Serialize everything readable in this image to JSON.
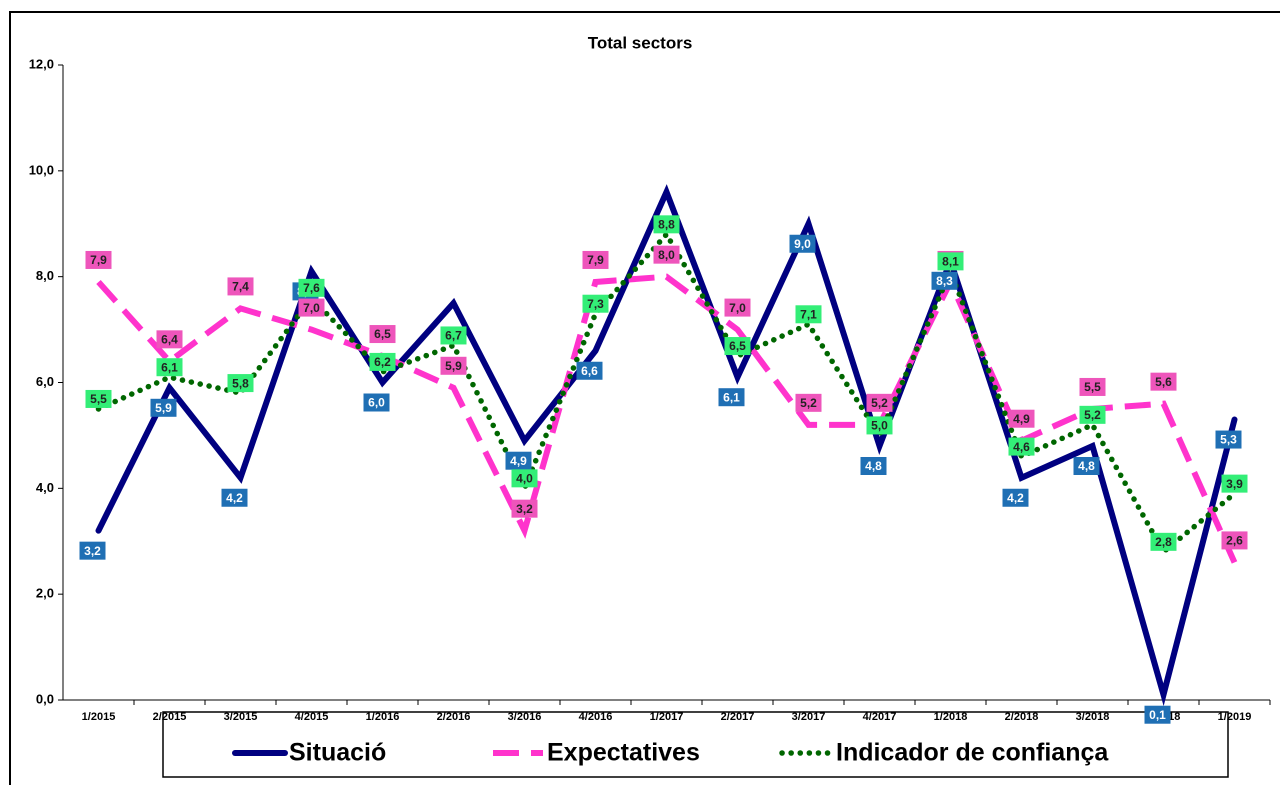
{
  "chart_data": {
    "type": "line",
    "title": "Total sectors",
    "categories": [
      "1/2015",
      "2/2015",
      "3/2015",
      "4/2015",
      "1/2016",
      "2/2016",
      "3/2016",
      "4/2016",
      "1/2017",
      "2/2017",
      "3/2017",
      "4/2017",
      "1/2018",
      "2/2018",
      "3/2018",
      "4/2018",
      "1/2019"
    ],
    "ylim": [
      0,
      12
    ],
    "yticks": [
      {
        "value": 0,
        "label": "0,0"
      },
      {
        "value": 2,
        "label": "2,0"
      },
      {
        "value": 4,
        "label": "4,0"
      },
      {
        "value": 6,
        "label": "6,0"
      },
      {
        "value": 8,
        "label": "8,0"
      },
      {
        "value": 10,
        "label": "10,0"
      },
      {
        "value": 12,
        "label": "12,0"
      }
    ],
    "legend": "bottom",
    "series": [
      {
        "name": "Situació",
        "color": "#000080",
        "style": "solid",
        "label_color": "#1f6fb4",
        "values": [
          3.2,
          5.9,
          4.2,
          8.1,
          6.0,
          7.5,
          4.9,
          6.6,
          9.6,
          6.1,
          9.0,
          4.8,
          8.3,
          4.2,
          4.8,
          0.1,
          5.3
        ],
        "value_labels": [
          "3,2",
          "5,9",
          "4,2",
          "8,1",
          "6,0",
          null,
          "4,9",
          "6,6",
          null,
          "6,1",
          "9,0",
          "4,8",
          "8,3",
          "4,2",
          "4,8",
          "0,1",
          "5,3"
        ]
      },
      {
        "name": "Expectatives",
        "color": "#ff33cc",
        "style": "dashed",
        "label_color": "#ee55bb",
        "values": [
          7.9,
          6.4,
          7.4,
          7.0,
          6.5,
          5.9,
          3.2,
          7.9,
          8.0,
          7.0,
          5.2,
          5.2,
          7.9,
          4.9,
          5.5,
          5.6,
          2.6
        ],
        "value_labels": [
          "7,9",
          "6,4",
          "7,4",
          "7,0",
          "6,5",
          "5,9",
          "3,2",
          "7,9",
          "8,0",
          "7,0",
          "5,2",
          "5,2",
          "7,9",
          "4,9",
          "5,5",
          "5,6",
          "2,6"
        ]
      },
      {
        "name": "Indicador de confiança",
        "color": "#006600",
        "style": "dotted",
        "label_color": "#33ee77",
        "values": [
          5.5,
          6.1,
          5.8,
          7.6,
          6.2,
          6.7,
          4.0,
          7.3,
          8.8,
          6.5,
          7.1,
          5.0,
          8.1,
          4.6,
          5.2,
          2.8,
          3.9
        ],
        "value_labels": [
          "5,5",
          "6,1",
          "5,8",
          "7,6",
          "6,2",
          "6,7",
          "4,0",
          "7,3",
          "8,8",
          "6,5",
          "7,1",
          "5,0",
          "8,1",
          "4,6",
          "5,2",
          "2,8",
          "3,9"
        ]
      }
    ]
  }
}
